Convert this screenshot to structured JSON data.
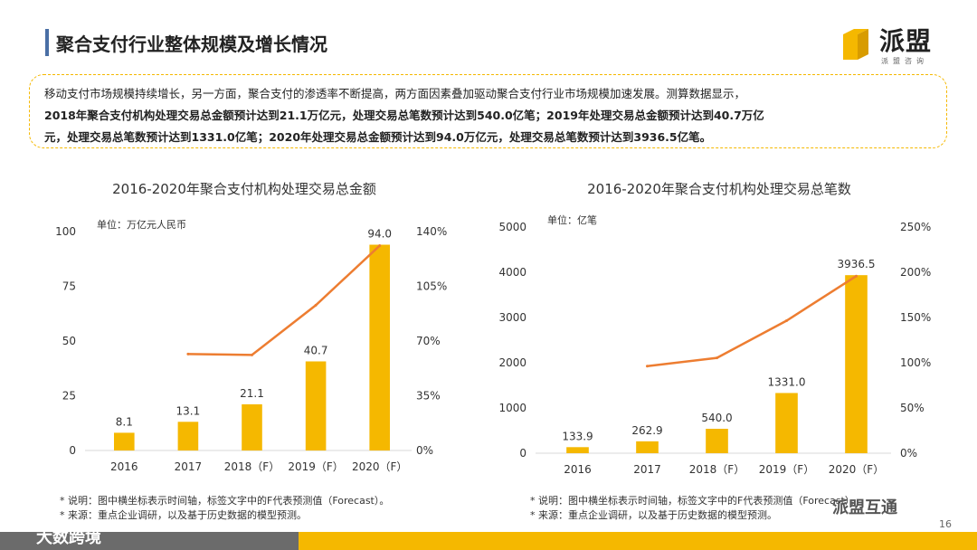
{
  "page": {
    "title": "聚合支付行业整体规模及增长情况",
    "logo_text": "派盟",
    "logo_sub": "派盟咨询",
    "page_number": "16",
    "watermark_left": "大数跨境",
    "watermark_right": "派盟互通",
    "colors": {
      "bar": "#f5b800",
      "line": "#ed7d31",
      "accent": "#4a6fa5"
    }
  },
  "intro": {
    "line1": "移动支付市场规模持续增长，另一方面，聚合支付的渗透率不断提高，两方面因素叠加驱动聚合支付行业市场规模加速发展。测算数据显示，",
    "line2": "2018年聚合支付机构处理交易总金额预计达到21.1万亿元，处理交易总笔数预计达到540.0亿笔；2019年处理交易总金额预计达到40.7万亿",
    "line3": "元，处理交易总笔数预计达到1331.0亿笔；2020年处理交易总金额预计达到94.0万亿元，处理交易总笔数预计达到3936.5亿笔。"
  },
  "notes_left": {
    "line1": "* 说明：图中横坐标表示时间轴，标签文字中的F代表预测值（Forecast）。",
    "line2": "* 来源：重点企业调研，以及基于历史数据的模型预测。"
  },
  "notes_right": {
    "line1": "* 说明：图中横坐标表示时间轴，标签文字中的F代表预测值（Forecast）。",
    "line2": "* 来源：重点企业调研，以及基于历史数据的模型预测。"
  },
  "chart_data": [
    {
      "type": "bar",
      "title": "2016-2020年聚合支付机构处理交易总金额",
      "unit": "单位：万亿元人民币",
      "categories": [
        "2016",
        "2017",
        "2018（F）",
        "2019（F）",
        "2020（F）"
      ],
      "values": [
        8.1,
        13.1,
        21.1,
        40.7,
        94.0
      ],
      "value_labels": [
        "8.1",
        "13.1",
        "21.1",
        "40.7",
        "94.0"
      ],
      "ylim": [
        0,
        100
      ],
      "yticks": [
        0,
        25,
        50,
        75,
        100
      ],
      "y2lim": [
        0,
        140
      ],
      "y2ticks": [
        0,
        35,
        70,
        105,
        140
      ],
      "y2tick_labels": [
        "0%",
        "35%",
        "70%",
        "105%",
        "140%"
      ],
      "growth_line": {
        "categories_start": 1,
        "values": [
          61.7,
          61.1,
          92.9,
          131.0
        ]
      }
    },
    {
      "type": "bar",
      "title": "2016-2020年聚合支付机构处理交易总笔数",
      "unit": "单位：亿笔",
      "categories": [
        "2016",
        "2017",
        "2018（F）",
        "2019（F）",
        "2020（F）"
      ],
      "values": [
        133.9,
        262.9,
        540.0,
        1331.0,
        3936.5
      ],
      "value_labels": [
        "133.9",
        "262.9",
        "540.0",
        "1331.0",
        "3936.5"
      ],
      "ylim": [
        0,
        5000
      ],
      "yticks": [
        0,
        1000,
        2000,
        3000,
        4000,
        5000
      ],
      "y2lim": [
        0,
        250
      ],
      "y2ticks": [
        0,
        50,
        100,
        150,
        200,
        250
      ],
      "y2tick_labels": [
        "0%",
        "50%",
        "100%",
        "150%",
        "200%",
        "250%"
      ],
      "growth_line": {
        "categories_start": 1,
        "values": [
          96.3,
          105.4,
          146.5,
          195.8
        ]
      }
    }
  ]
}
